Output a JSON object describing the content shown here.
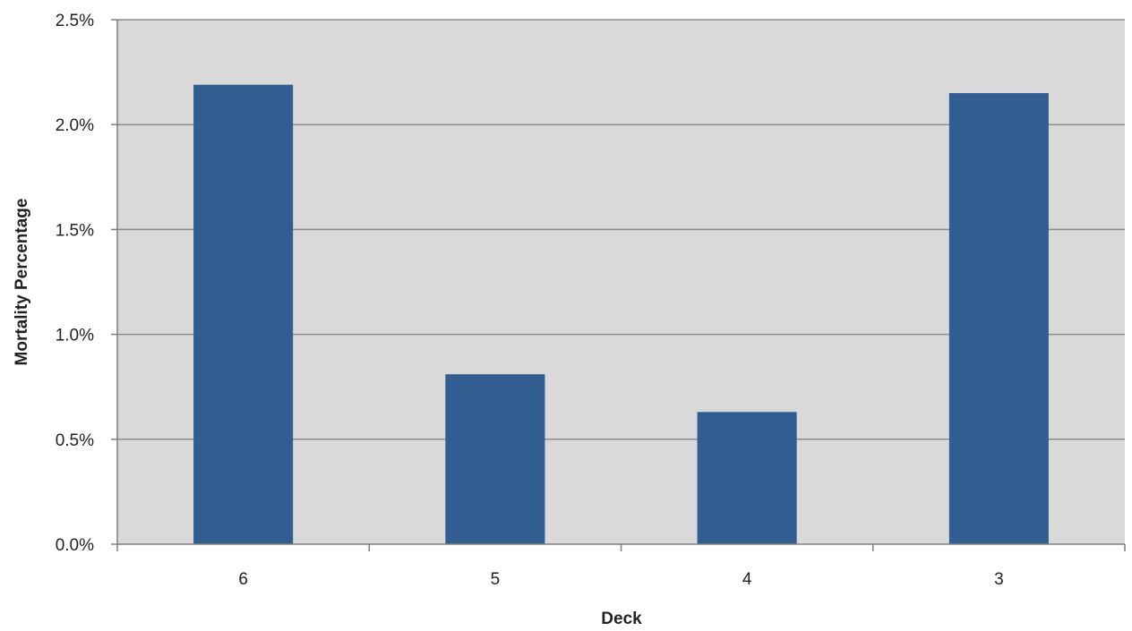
{
  "chart_data": {
    "type": "bar",
    "title": "",
    "xlabel": "Deck",
    "ylabel": "Mortality Percentage",
    "categories": [
      "6",
      "5",
      "4",
      "3"
    ],
    "values": [
      2.19,
      0.81,
      0.63,
      2.15
    ],
    "value_unit": "%",
    "ylim": [
      0,
      2.5
    ],
    "yticks": [
      0,
      0.5,
      1.0,
      1.5,
      2.0,
      2.5
    ],
    "ytick_labels": [
      "0.0%",
      "0.5%",
      "1.0%",
      "1.5%",
      "2.0%",
      "2.5%"
    ],
    "grid": true,
    "legend": "none",
    "colors": {
      "bar": "#325D91",
      "plot_background": "#D9D9D9",
      "gridline": "#8C8C8C",
      "axis": "#7F7F7F"
    }
  }
}
